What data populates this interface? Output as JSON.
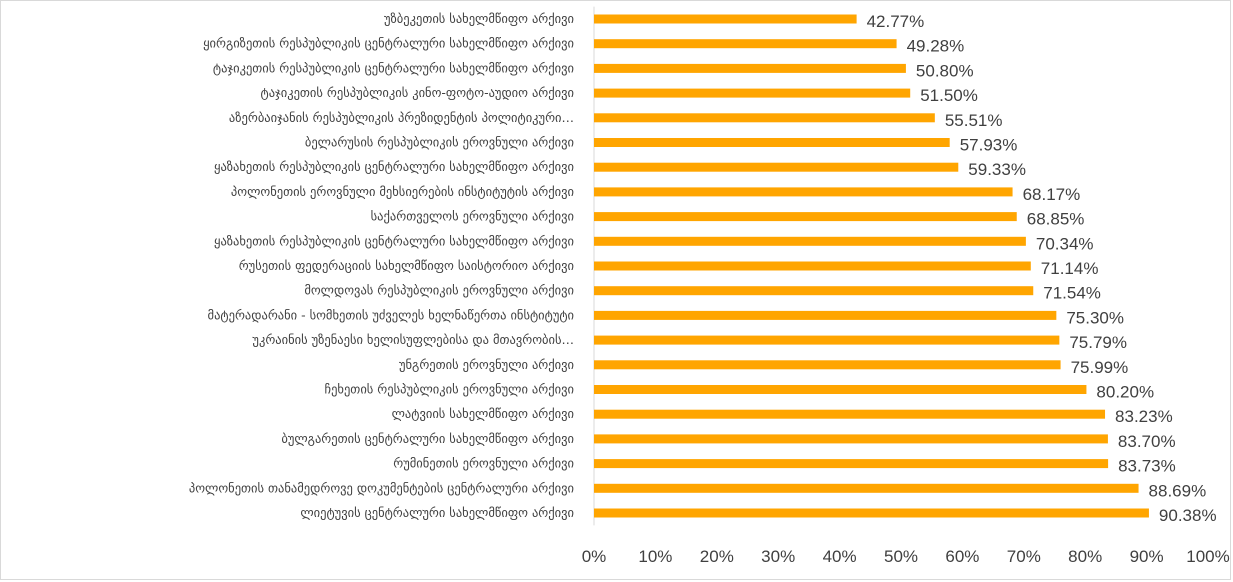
{
  "chart_data": {
    "type": "bar",
    "orientation": "horizontal",
    "categories": [
      "უზბეკეთის სახელმწიფო არქივი",
      "ყირგიზეთის რესპუბლიკის ცენტრალური სახელმწიფო არქივი",
      "ტაჯიკეთის რესპუბლიკის ცენტრალური სახელმწიფო არქივი",
      "ტაჯიკეთის რესპუბლიკის კინო-ფოტო-აუდიო არქივი",
      "აზერბაიჯანის რესპუბლიკის პრეზიდენტის პოლიტიკური…",
      "ბელარუსის რესპუბლიკის ეროვნული არქივი",
      "ყაზახეთის რესპუბლიკის ცენტრალური სახელმწიფო არქივი",
      "პოლონეთის ეროვნული მეხსიერების ინსტიტუტის არქივი",
      "საქართველოს ეროვნული არქივი",
      "ყაზახეთის რესპუბლიკის ცენტრალური სახელმწიფო არქივი",
      "რუსეთის ფედერაციის სახელმწიფო საისტორიო არქივი",
      "მოლდოვას რესპუბლიკის ეროვნული არქივი",
      "მატერადარანი - სომხეთის უძველეს ხელნაწერთა ინსტიტუტი",
      "უკრაინის უზენაესი ხელისუფლებისა და მთავრობის…",
      "უნგრეთის ეროვნული არქივი",
      "ჩეხეთის რესპუბლიკის ეროვნული არქივი",
      "ლატვიის სახელმწიფო არქივი",
      "ბულგარეთის ცენტრალური სახელმწიფო არქივი",
      "რუმინეთის ეროვნული არქივი",
      "პოლონეთის თანამედროვე დოკუმენტების ცენტრალური არქივი",
      "ლიეტუვის ცენტრალური სახელმწიფო არქივი"
    ],
    "values": [
      42.77,
      49.28,
      50.8,
      51.5,
      55.51,
      57.93,
      59.33,
      68.17,
      68.85,
      70.34,
      71.14,
      71.54,
      75.3,
      75.79,
      75.99,
      80.2,
      83.23,
      83.7,
      83.73,
      88.69,
      90.38
    ],
    "value_labels": [
      "42.77%",
      "49.28%",
      "50.80%",
      "51.50%",
      "55.51%",
      "57.93%",
      "59.33%",
      "68.17%",
      "68.85%",
      "70.34%",
      "71.14%",
      "71.54%",
      "75.30%",
      "75.79%",
      "75.99%",
      "80.20%",
      "83.23%",
      "83.70%",
      "83.73%",
      "88.69%",
      "90.38%"
    ],
    "x_ticks": [
      "0%",
      "10%",
      "20%",
      "30%",
      "40%",
      "50%",
      "60%",
      "70%",
      "80%",
      "90%",
      "100%"
    ],
    "xlim": [
      0,
      100
    ],
    "grid": false,
    "bar_color": "#FFA500",
    "text_color": "#404040",
    "axis_color": "#d9d9d9"
  }
}
